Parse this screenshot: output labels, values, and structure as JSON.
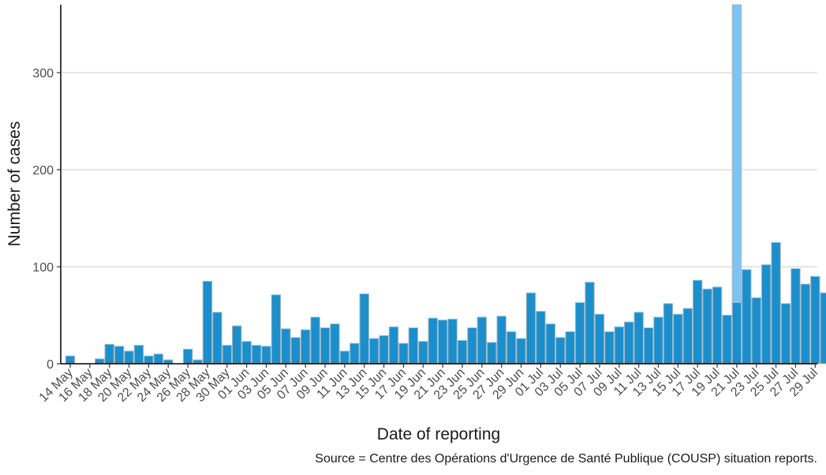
{
  "chart_data": {
    "type": "bar",
    "xlabel": "Date of reporting",
    "ylabel": "Number of cases",
    "caption": "Source = Centre des Opérations d'Urgence de Santé Publique (COUSP) situation reports.",
    "ylim": [
      0,
      370
    ],
    "yticks": [
      0,
      100,
      200,
      300
    ],
    "grid": "horizontal",
    "colors": {
      "bar": "#1890d0",
      "bar_outline": "#b3b3b3",
      "highlight": "#7cc4f5",
      "grid": "#d9d9d9",
      "axis": "#000000"
    },
    "categories": [
      "14 May",
      "15 May",
      "16 May",
      "17 May",
      "18 May",
      "19 May",
      "20 May",
      "21 May",
      "22 May",
      "23 May",
      "24 May",
      "25 May",
      "26 May",
      "27 May",
      "28 May",
      "29 May",
      "30 May",
      "31 May",
      "01 Jun",
      "02 Jun",
      "03 Jun",
      "04 Jun",
      "05 Jun",
      "06 Jun",
      "07 Jun",
      "08 Jun",
      "09 Jun",
      "10 Jun",
      "11 Jun",
      "12 Jun",
      "13 Jun",
      "14 Jun",
      "15 Jun",
      "16 Jun",
      "17 Jun",
      "18 Jun",
      "19 Jun",
      "20 Jun",
      "21 Jun",
      "22 Jun",
      "23 Jun",
      "24 Jun",
      "25 Jun",
      "26 Jun",
      "27 Jun",
      "28 Jun",
      "29 Jun",
      "30 Jun",
      "01 Jul",
      "02 Jul",
      "03 Jul",
      "04 Jul",
      "05 Jul",
      "06 Jul",
      "07 Jul",
      "08 Jul",
      "09 Jul",
      "10 Jul",
      "11 Jul",
      "12 Jul",
      "13 Jul",
      "14 Jul",
      "15 Jul",
      "16 Jul",
      "17 Jul",
      "18 Jul",
      "19 Jul",
      "20 Jul",
      "21 Jul",
      "22 Jul",
      "23 Jul",
      "24 Jul",
      "25 Jul",
      "26 Jul",
      "27 Jul",
      "28 Jul",
      "29 Jul",
      "30 Jul"
    ],
    "tick_labels": [
      "14 May",
      "16 May",
      "18 May",
      "20 May",
      "22 May",
      "24 May",
      "26 May",
      "28 May",
      "30 May",
      "01 Jun",
      "03 Jun",
      "05 Jun",
      "07 Jun",
      "09 Jun",
      "11 Jun",
      "13 Jun",
      "15 Jun",
      "17 Jun",
      "19 Jun",
      "21 Jun",
      "23 Jun",
      "25 Jun",
      "27 Jun",
      "29 Jun",
      "01 Jul",
      "03 Jul",
      "05 Jul",
      "07 Jul",
      "09 Jul",
      "11 Jul",
      "13 Jul",
      "15 Jul",
      "17 Jul",
      "19 Jul",
      "21 Jul",
      "23 Jul",
      "25 Jul",
      "27 Jul",
      "29 Jul"
    ],
    "values": [
      8,
      0,
      0,
      5,
      20,
      18,
      13,
      19,
      8,
      10,
      4,
      0,
      15,
      4,
      85,
      53,
      19,
      39,
      23,
      19,
      18,
      71,
      36,
      27,
      35,
      48,
      37,
      41,
      13,
      21,
      72,
      26,
      29,
      38,
      21,
      37,
      23,
      47,
      45,
      46,
      24,
      37,
      48,
      22,
      49,
      33,
      26,
      73,
      54,
      41,
      27,
      33,
      63,
      84,
      51,
      33,
      38,
      43,
      53,
      37,
      48,
      62,
      51,
      57,
      86,
      77,
      79,
      50,
      63,
      97,
      68,
      102,
      125,
      62,
      98,
      82,
      90,
      73
    ],
    "highlight": {
      "category": "21 Jul",
      "value": 370
    }
  }
}
